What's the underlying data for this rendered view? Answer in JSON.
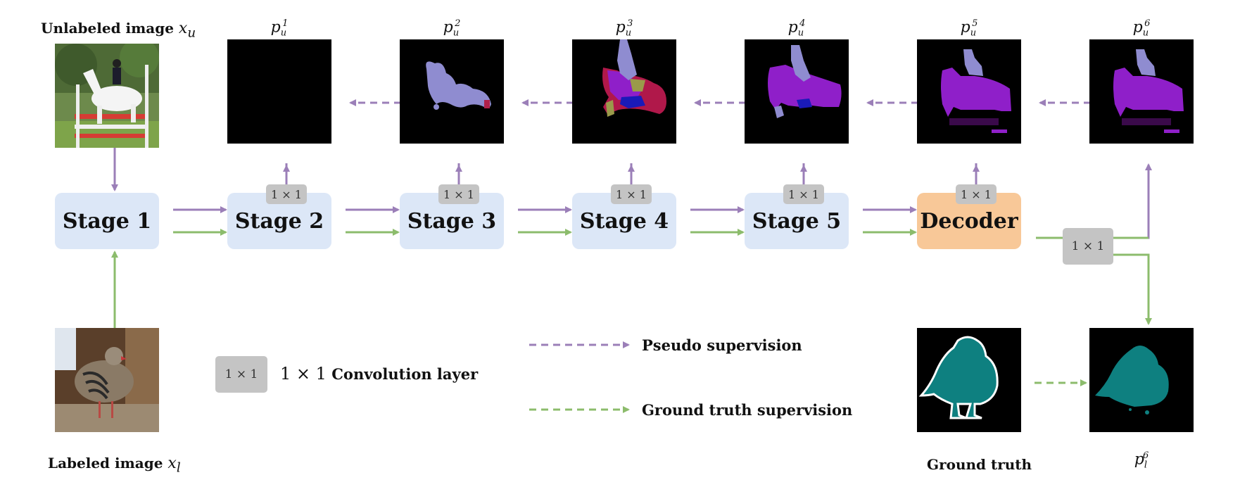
{
  "inputs": {
    "unlabeled_label": "Unlabeled image",
    "unlabeled_symbol": "x",
    "unlabeled_sub": "u",
    "labeled_label": "Labeled image",
    "labeled_symbol": "x",
    "labeled_sub": "l"
  },
  "stages": [
    "Stage 1",
    "Stage 2",
    "Stage 3",
    "Stage 4",
    "Stage 5"
  ],
  "decoder": "Decoder",
  "conv_label": "1 × 1",
  "predictions": [
    {
      "symbol": "p",
      "sub": "u",
      "sup": "1"
    },
    {
      "symbol": "p",
      "sub": "u",
      "sup": "2"
    },
    {
      "symbol": "p",
      "sub": "u",
      "sup": "3"
    },
    {
      "symbol": "p",
      "sub": "u",
      "sup": "4"
    },
    {
      "symbol": "p",
      "sub": "u",
      "sup": "5"
    },
    {
      "symbol": "p",
      "sub": "u",
      "sup": "6"
    }
  ],
  "labeled_prediction": {
    "symbol": "p",
    "sub": "l",
    "sup": "6"
  },
  "ground_truth_label": "Ground truth",
  "legend": {
    "conv_math": "1 × 1",
    "conv_text": "Convolution layer",
    "pseudo": "Pseudo supervision",
    "gt": "Ground truth supervision"
  },
  "colors": {
    "pseudo_arrow": "#9b7fb8",
    "gt_arrow": "#8cbc6c",
    "stage_fill": "#dce7f7",
    "decoder_fill": "#f8c898",
    "conv_fill": "#c4c4c4",
    "bird_teal": "#0e8080",
    "horse_purple": "#8f1fc9",
    "rider_lavender": "#8f8cd0"
  }
}
